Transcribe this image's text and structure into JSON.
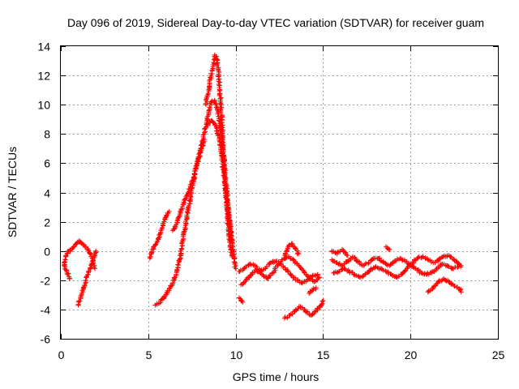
{
  "chart_data": {
    "type": "scatter",
    "title": "Day 096 of 2019, Sidereal Day-to-day VTEC variation (SDTVAR) for receiver guam",
    "xlabel": "GPS time / hours",
    "ylabel": "SDTVAR / TECUs",
    "xlim": [
      0,
      25
    ],
    "ylim": [
      -6,
      14
    ],
    "xticks": [
      0,
      5,
      10,
      15,
      20,
      25
    ],
    "yticks": [
      -6,
      -4,
      -2,
      0,
      2,
      4,
      6,
      8,
      10,
      12,
      14
    ],
    "xtick_labels": [
      "0",
      "5",
      "10",
      "15",
      "20",
      "25"
    ],
    "ytick_labels": [
      "-6",
      "-4",
      "-2",
      "0",
      "2",
      "4",
      "6",
      "8",
      "10",
      "12",
      "14"
    ],
    "grid": true,
    "marker": "+",
    "series": [
      {
        "name": "SDTVAR",
        "color": "#ff0000",
        "segments": [
          {
            "x": [
              0.2,
              0.3,
              0.45,
              0.6,
              0.75,
              0.9,
              1.05,
              1.2,
              1.4,
              1.6,
              1.8,
              1.95
            ],
            "y": [
              -1.0,
              -0.3,
              0.0,
              0.1,
              0.3,
              0.5,
              0.7,
              0.5,
              0.3,
              0.0,
              -0.5,
              -1.2
            ]
          },
          {
            "x": [
              0.2,
              0.35,
              0.5
            ],
            "y": [
              -1.0,
              -1.4,
              -1.9
            ]
          },
          {
            "x": [
              1.0,
              1.2,
              1.4,
              1.6,
              1.8,
              1.95,
              2.0
            ],
            "y": [
              -3.7,
              -3.0,
              -2.2,
              -1.4,
              -0.7,
              -0.2,
              0.0
            ]
          },
          {
            "x": [
              5.1,
              5.2,
              5.3,
              5.4,
              5.5,
              5.6,
              5.7,
              5.8,
              5.9,
              6.0,
              6.1,
              6.2
            ],
            "y": [
              -0.5,
              -0.1,
              0.2,
              0.4,
              0.6,
              0.9,
              1.2,
              1.6,
              2.0,
              2.3,
              2.6,
              2.7
            ]
          },
          {
            "x": [
              5.4,
              5.6,
              5.8,
              6.0,
              6.2,
              6.4,
              6.6,
              6.8,
              7.0,
              7.2,
              7.4,
              7.6,
              7.8,
              8.0,
              8.2
            ],
            "y": [
              -3.7,
              -3.6,
              -3.3,
              -3.0,
              -2.6,
              -2.2,
              -1.6,
              -0.6,
              0.8,
              2.2,
              3.6,
              4.8,
              6.0,
              6.8,
              7.6
            ]
          },
          {
            "x": [
              6.4,
              6.6,
              6.8,
              7.0,
              7.2,
              7.4,
              7.6,
              7.8,
              8.0,
              8.2,
              8.4,
              8.6,
              8.8,
              9.0,
              9.2,
              9.4,
              9.6,
              9.8,
              10.0
            ],
            "y": [
              1.4,
              1.8,
              2.4,
              3.2,
              3.8,
              4.4,
              5.0,
              6.0,
              7.0,
              8.0,
              9.2,
              10.2,
              10.3,
              9.5,
              7.8,
              5.2,
              2.6,
              0.4,
              -1.2
            ]
          },
          {
            "x": [
              8.3,
              8.5,
              8.7,
              8.8,
              8.9,
              9.0,
              9.1,
              9.2,
              9.3,
              9.4,
              9.5,
              9.6,
              9.8
            ],
            "y": [
              10.0,
              11.4,
              12.6,
              13.4,
              13.3,
              12.4,
              11.0,
              9.0,
              6.8,
              4.6,
              2.8,
              1.2,
              -0.4
            ]
          },
          {
            "x": [
              8.4,
              8.6,
              8.8,
              9.0,
              9.2,
              9.4,
              9.6,
              9.8
            ],
            "y": [
              8.6,
              8.9,
              8.7,
              8.0,
              6.5,
              4.6,
              2.5,
              0.6
            ]
          },
          {
            "x": [
              10.3,
              10.6,
              10.9,
              11.2,
              11.5,
              11.8,
              12.1,
              12.4,
              12.7,
              13.0,
              13.3,
              13.6,
              13.9,
              14.2,
              14.5,
              14.8
            ],
            "y": [
              -2.3,
              -2.0,
              -1.6,
              -1.3,
              -1.6,
              -1.9,
              -1.5,
              -1.0,
              -0.6,
              -0.4,
              -0.6,
              -1.0,
              -1.4,
              -1.8,
              -2.1,
              -1.8
            ]
          },
          {
            "x": [
              10.2,
              10.5,
              10.8,
              11.1,
              11.4,
              11.7,
              12.0,
              12.3,
              12.6,
              12.9,
              13.2,
              13.5,
              13.8,
              14.1,
              14.4,
              14.7
            ],
            "y": [
              -1.4,
              -1.2,
              -0.9,
              -1.0,
              -1.4,
              -1.2,
              -0.8,
              -0.7,
              -0.9,
              -1.3,
              -1.7,
              -2.0,
              -2.2,
              -2.0,
              -1.7,
              -1.6
            ]
          },
          {
            "x": [
              12.8,
              13.0,
              13.2,
              13.4,
              13.6
            ],
            "y": [
              -0.3,
              0.3,
              0.5,
              0.2,
              -0.2
            ]
          },
          {
            "x": [
              10.2,
              10.4
            ],
            "y": [
              -3.2,
              -3.5
            ]
          },
          {
            "x": [
              14.2,
              14.4,
              14.6
            ],
            "y": [
              -2.9,
              -2.7,
              -2.5
            ]
          },
          {
            "x": [
              12.8,
              13.1,
              13.4,
              13.7,
              14.0,
              14.3,
              14.6,
              14.9,
              15.0
            ],
            "y": [
              -4.6,
              -4.4,
              -4.1,
              -3.8,
              -4.1,
              -4.4,
              -4.1,
              -3.7,
              -3.4
            ]
          },
          {
            "x": [
              15.5,
              15.8,
              16.1,
              16.4,
              16.7,
              17.0,
              17.3,
              17.6,
              17.9,
              18.2,
              18.5,
              18.8,
              19.1,
              19.4,
              19.7,
              20.0,
              20.3,
              20.6,
              20.9,
              21.2,
              21.5,
              21.8,
              22.1,
              22.4,
              22.7,
              22.9
            ],
            "y": [
              -0.6,
              -0.8,
              -1.0,
              -0.7,
              -0.4,
              -0.7,
              -1.0,
              -0.8,
              -0.5,
              -0.5,
              -0.8,
              -1.0,
              -0.7,
              -0.5,
              -0.7,
              -1.0,
              -1.2,
              -1.5,
              -1.6,
              -1.5,
              -1.2,
              -0.9,
              -1.0,
              -1.2,
              -1.1,
              -1.0
            ]
          },
          {
            "x": [
              15.6,
              15.9,
              16.2,
              16.5,
              16.8,
              17.1,
              17.4,
              17.7,
              18.0,
              18.3,
              18.6,
              18.9,
              19.2,
              19.5,
              19.8,
              20.1,
              20.4,
              20.7,
              21.0,
              21.3,
              21.6,
              21.9,
              22.2,
              22.5,
              22.8
            ],
            "y": [
              -1.5,
              -1.4,
              -1.2,
              -1.4,
              -1.6,
              -1.8,
              -1.6,
              -1.3,
              -1.1,
              -1.2,
              -1.4,
              -1.6,
              -1.8,
              -1.6,
              -1.2,
              -0.8,
              -0.5,
              -0.4,
              -0.6,
              -0.8,
              -0.6,
              -0.4,
              -0.3,
              -0.6,
              -0.9
            ]
          },
          {
            "x": [
              15.5,
              15.8,
              16.1,
              16.4
            ],
            "y": [
              0.0,
              -0.2,
              0.1,
              -0.3
            ]
          },
          {
            "x": [
              18.6,
              18.8
            ],
            "y": [
              0.3,
              0.1
            ]
          },
          {
            "x": [
              21.0,
              21.3,
              21.6,
              21.9,
              22.2,
              22.5,
              22.8,
              22.9
            ],
            "y": [
              -2.8,
              -2.5,
              -2.1,
              -1.9,
              -2.1,
              -2.4,
              -2.6,
              -2.8
            ]
          }
        ]
      }
    ]
  }
}
